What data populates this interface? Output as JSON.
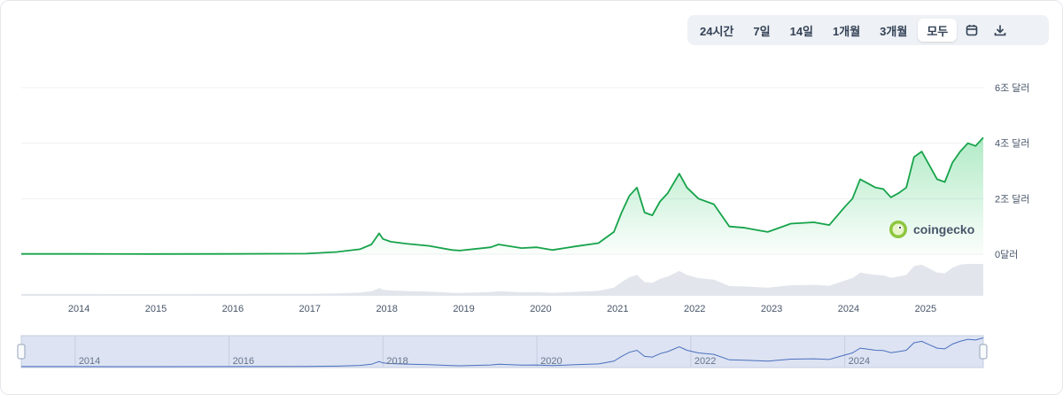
{
  "toolbar": {
    "ranges": [
      "24시간",
      "7일",
      "14일",
      "1개월",
      "3개월",
      "모두"
    ],
    "active": "모두",
    "calendar_icon": "calendar-icon",
    "download_icon": "download-icon"
  },
  "brand": {
    "name": "coingecko",
    "logo_icon": "gecko-logo-icon"
  },
  "colors": {
    "line": "#16a34a",
    "fill_top": "#22c55e",
    "navigator_fill": "#dde3f2",
    "navigator_line": "#4a6fbf",
    "grid": "#eef0f3",
    "volume": "#e2e6ec"
  },
  "chart_data": {
    "type": "area",
    "title": "",
    "xlabel": "",
    "ylabel": "",
    "x_range": [
      2013.3,
      2025.8
    ],
    "ylim": [
      0,
      6
    ],
    "y_ticks": [
      {
        "value": 0,
        "label": "0달러"
      },
      {
        "value": 2,
        "label": "2조 달러"
      },
      {
        "value": 4,
        "label": "4조 달러"
      },
      {
        "value": 6,
        "label": "6조 달러"
      }
    ],
    "x_ticks": [
      {
        "value": 2014,
        "label": "2014"
      },
      {
        "value": 2015,
        "label": "2015"
      },
      {
        "value": 2016,
        "label": "2016"
      },
      {
        "value": 2017,
        "label": "2017"
      },
      {
        "value": 2018,
        "label": "2018"
      },
      {
        "value": 2019,
        "label": "2019"
      },
      {
        "value": 2020,
        "label": "2020"
      },
      {
        "value": 2021,
        "label": "2021"
      },
      {
        "value": 2022,
        "label": "2022"
      },
      {
        "value": 2023,
        "label": "2023"
      },
      {
        "value": 2024,
        "label": "2024"
      },
      {
        "value": 2025,
        "label": "2025"
      }
    ],
    "series": [
      {
        "x": [
          2013.3,
          2014.0,
          2015.0,
          2016.0,
          2017.0,
          2017.4,
          2017.7,
          2017.85,
          2017.95,
          2018.0,
          2018.1,
          2018.3,
          2018.6,
          2018.9,
          2019.0,
          2019.4,
          2019.5,
          2019.8,
          2020.0,
          2020.2,
          2020.5,
          2020.8,
          2021.0,
          2021.1,
          2021.2,
          2021.3,
          2021.4,
          2021.5,
          2021.6,
          2021.7,
          2021.85,
          2021.95,
          2022.1,
          2022.3,
          2022.5,
          2022.7,
          2022.9,
          2023.0,
          2023.3,
          2023.6,
          2023.8,
          2024.0,
          2024.1,
          2024.2,
          2024.3,
          2024.4,
          2024.5,
          2024.6,
          2024.7,
          2024.8,
          2024.9,
          2025.0,
          2025.1,
          2025.2,
          2025.3,
          2025.4,
          2025.5,
          2025.6,
          2025.7,
          2025.8
        ],
        "values": [
          0.01,
          0.01,
          0.005,
          0.01,
          0.02,
          0.08,
          0.18,
          0.35,
          0.75,
          0.55,
          0.45,
          0.38,
          0.3,
          0.15,
          0.13,
          0.25,
          0.35,
          0.22,
          0.25,
          0.15,
          0.28,
          0.4,
          0.8,
          1.5,
          2.1,
          2.4,
          1.5,
          1.4,
          1.9,
          2.2,
          2.9,
          2.4,
          2.0,
          1.8,
          1.0,
          0.95,
          0.85,
          0.8,
          1.1,
          1.15,
          1.05,
          1.7,
          2.0,
          2.7,
          2.55,
          2.4,
          2.35,
          2.05,
          2.2,
          2.4,
          3.5,
          3.7,
          3.2,
          2.7,
          2.6,
          3.3,
          3.7,
          4.0,
          3.9,
          4.2
        ]
      }
    ]
  }
}
